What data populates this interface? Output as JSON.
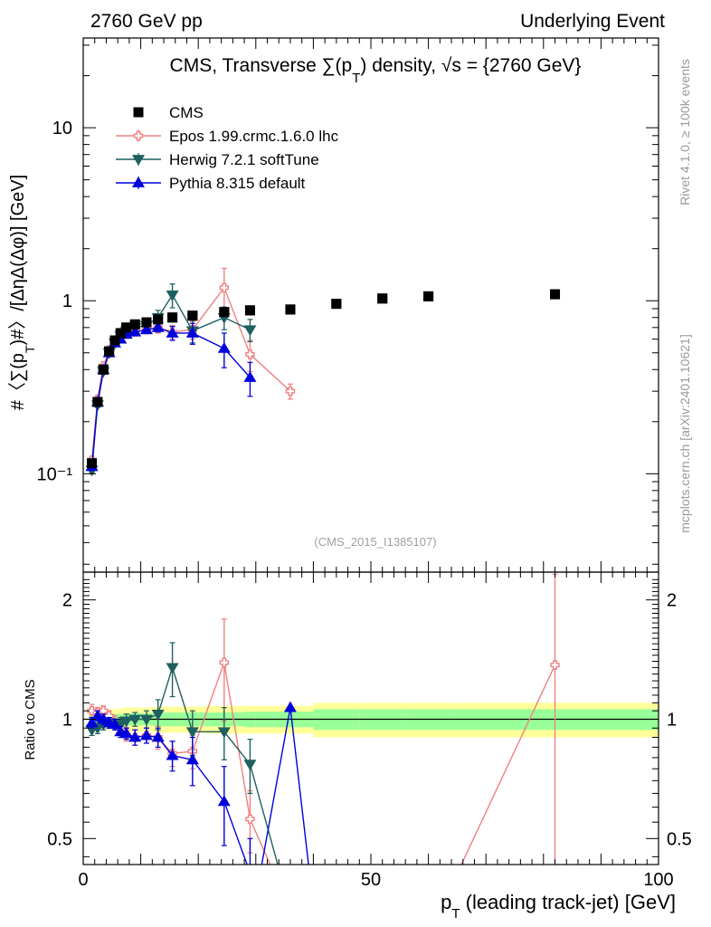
{
  "header": {
    "left": "2760 GeV pp",
    "right": "Underlying Event"
  },
  "chart_data": [
    {
      "name": "main",
      "type": "scatter",
      "title": "CMS, Transverse ∑(p",
      "title_sub": "T",
      "title_tail": ") density, √s = {2760 GeV}",
      "ylabel_main": "#〈∑(p",
      "ylabel_sub": "T",
      "ylabel_tail": ")#〉/[ΔηΔ(Δφ)] [GeV]",
      "yscale": "log",
      "xlim": [
        0,
        100
      ],
      "ylim": [
        0.027,
        33
      ],
      "yticks": [
        "10⁻¹",
        "1",
        "10"
      ],
      "ytick_values": [
        0.1,
        1,
        10
      ],
      "watermark": "(CMS_2015_I1385107)",
      "legend_position": "top-left",
      "series": [
        {
          "name": "CMS",
          "marker": "square",
          "color": "#000000",
          "x": [
            1.5,
            2.5,
            3.5,
            4.5,
            5.5,
            6.5,
            7.5,
            9.0,
            11.0,
            13.0,
            15.5,
            19.0,
            24.5,
            29.0,
            36.0,
            44.0,
            52.0,
            60.0,
            82.0
          ],
          "y": [
            0.115,
            0.26,
            0.4,
            0.51,
            0.59,
            0.65,
            0.7,
            0.73,
            0.75,
            0.78,
            0.8,
            0.82,
            0.86,
            0.88,
            0.89,
            0.96,
            1.03,
            1.06,
            1.09
          ]
        },
        {
          "name": "Epos 1.99.crmc.1.6.0 lhc",
          "marker": "cross",
          "color": "#f08080",
          "x": [
            1.5,
            2.5,
            3.5,
            4.5,
            5.5,
            6.5,
            7.5,
            9.0,
            11.0,
            13.0,
            15.5,
            19.0,
            24.5,
            29.0,
            36.0
          ],
          "y": [
            0.12,
            0.27,
            0.42,
            0.52,
            0.58,
            0.62,
            0.64,
            0.66,
            0.68,
            0.7,
            0.66,
            0.68,
            1.19,
            0.49,
            0.3
          ],
          "err": [
            0.004,
            0.008,
            0.01,
            0.015,
            0.02,
            0.02,
            0.02,
            0.03,
            0.03,
            0.05,
            0.06,
            0.08,
            0.35,
            0.1,
            0.03
          ]
        },
        {
          "name": "Herwig 7.2.1 softTune",
          "marker": "triangle-down",
          "color": "#1f5f5f",
          "x": [
            1.5,
            2.5,
            3.5,
            4.5,
            5.5,
            6.5,
            7.5,
            9.0,
            11.0,
            13.0,
            15.5,
            19.0,
            24.5,
            29.0
          ],
          "y": [
            0.105,
            0.25,
            0.39,
            0.5,
            0.57,
            0.63,
            0.67,
            0.7,
            0.72,
            0.8,
            1.08,
            0.67,
            0.8,
            0.68
          ],
          "err": [
            0.004,
            0.008,
            0.01,
            0.015,
            0.02,
            0.02,
            0.03,
            0.03,
            0.04,
            0.08,
            0.17,
            0.1,
            0.12,
            0.1
          ]
        },
        {
          "name": "Pythia 8.315 default",
          "marker": "triangle-up",
          "color": "#0000dd",
          "x": [
            1.5,
            2.5,
            3.5,
            4.5,
            5.5,
            6.5,
            7.5,
            9.0,
            11.0,
            13.0,
            15.5,
            19.0,
            24.5,
            29.0
          ],
          "y": [
            0.11,
            0.26,
            0.4,
            0.5,
            0.57,
            0.6,
            0.64,
            0.66,
            0.68,
            0.7,
            0.65,
            0.65,
            0.53,
            0.36
          ],
          "err": [
            0.004,
            0.008,
            0.01,
            0.015,
            0.02,
            0.02,
            0.02,
            0.03,
            0.03,
            0.04,
            0.06,
            0.09,
            0.12,
            0.08
          ]
        }
      ]
    },
    {
      "name": "ratio",
      "type": "line",
      "ylabel": "Ratio to CMS",
      "yscale": "log",
      "xlim": [
        0,
        100
      ],
      "ylim": [
        0.43,
        2.35
      ],
      "xlabel_main": "p",
      "xlabel_sub": "T",
      "xlabel_tail": " (leading track-jet) [GeV]",
      "xticks": [
        "0",
        "50",
        "100"
      ],
      "xtick_values": [
        0,
        50,
        100
      ],
      "yticks": [
        "0.5",
        "1",
        "2"
      ],
      "ytick_values": [
        0.5,
        1,
        2
      ],
      "band_edges": [
        1,
        2,
        3,
        4,
        5,
        6,
        7,
        8,
        10,
        12,
        14,
        17,
        21,
        28,
        30,
        40,
        48,
        56,
        64,
        100
      ],
      "band_inner": [
        0.02,
        0.02,
        0.025,
        0.03,
        0.03,
        0.03,
        0.035,
        0.035,
        0.035,
        0.04,
        0.04,
        0.04,
        0.04,
        0.045,
        0.045,
        0.06,
        0.06,
        0.06,
        0.06
      ],
      "band_outer": [
        0.04,
        0.045,
        0.05,
        0.06,
        0.06,
        0.065,
        0.07,
        0.07,
        0.07,
        0.075,
        0.075,
        0.075,
        0.08,
        0.08,
        0.08,
        0.1,
        0.1,
        0.1,
        0.1
      ],
      "series": [
        {
          "name": "Epos 1.99.crmc.1.6.0 lhc",
          "color": "#f08080",
          "marker": "cross",
          "x": [
            1.5,
            2.5,
            3.5,
            4.5,
            5.5,
            6.5,
            7.5,
            9.0,
            11.0,
            13.0,
            15.5,
            19.0,
            24.5,
            29.0,
            36.0,
            64.0,
            82.0
          ],
          "y": [
            1.05,
            1.04,
            1.05,
            1.02,
            0.98,
            0.95,
            0.91,
            0.9,
            0.91,
            0.9,
            0.82,
            0.83,
            1.39,
            0.56,
            0.33,
            0.38,
            1.37
          ],
          "err": [
            0.04,
            0.03,
            0.03,
            0.03,
            0.04,
            0.03,
            0.03,
            0.04,
            0.04,
            0.06,
            0.06,
            0.08,
            0.4,
            0.1,
            0.04,
            0,
            0.95
          ],
          "marked": [
            true,
            true,
            true,
            true,
            true,
            true,
            true,
            true,
            true,
            true,
            true,
            true,
            true,
            true,
            false,
            false,
            true
          ]
        },
        {
          "name": "Herwig 7.2.1 softTune",
          "color": "#1f5f5f",
          "marker": "triangle-down",
          "x": [
            1.5,
            2.5,
            3.5,
            4.5,
            5.5,
            6.5,
            7.5,
            9.0,
            11.0,
            13.0,
            15.5,
            19.0,
            24.5,
            29.0,
            36.0
          ],
          "y": [
            0.94,
            0.95,
            0.97,
            0.98,
            0.97,
            0.97,
            0.99,
            1.0,
            1.0,
            1.03,
            1.35,
            0.93,
            0.93,
            0.77,
            0.33
          ],
          "err": [
            0.03,
            0.03,
            0.03,
            0.03,
            0.03,
            0.04,
            0.04,
            0.04,
            0.05,
            0.09,
            0.21,
            0.12,
            0.14,
            0.12,
            0
          ],
          "marked": [
            true,
            true,
            true,
            true,
            true,
            true,
            true,
            true,
            true,
            true,
            true,
            true,
            true,
            true,
            false
          ]
        },
        {
          "name": "Pythia 8.315 default",
          "color": "#0000dd",
          "marker": "triangle-up",
          "x": [
            1.5,
            2.5,
            3.5,
            4.5,
            5.5,
            6.5,
            7.5,
            9.0,
            11.0,
            13.0,
            15.5,
            19.0,
            24.5,
            29.0,
            30.5,
            36.0,
            39.5
          ],
          "y": [
            0.98,
            1.02,
            1.0,
            0.98,
            0.97,
            0.93,
            0.92,
            0.9,
            0.91,
            0.9,
            0.81,
            0.79,
            0.62,
            0.41,
            0.39,
            1.07,
            0.39
          ],
          "err": [
            0.03,
            0.03,
            0.03,
            0.03,
            0.03,
            0.03,
            0.03,
            0.04,
            0.04,
            0.05,
            0.07,
            0.11,
            0.14,
            0.09,
            0,
            0,
            0
          ],
          "marked": [
            true,
            true,
            true,
            true,
            true,
            true,
            true,
            true,
            true,
            true,
            true,
            true,
            true,
            true,
            false,
            true,
            false
          ]
        }
      ]
    }
  ],
  "sidebar": {
    "rivet": "Rivet 4.1.0, ≥ 100k events",
    "mcplots": "mcplots.cern.ch [arXiv:2401.10621]"
  }
}
